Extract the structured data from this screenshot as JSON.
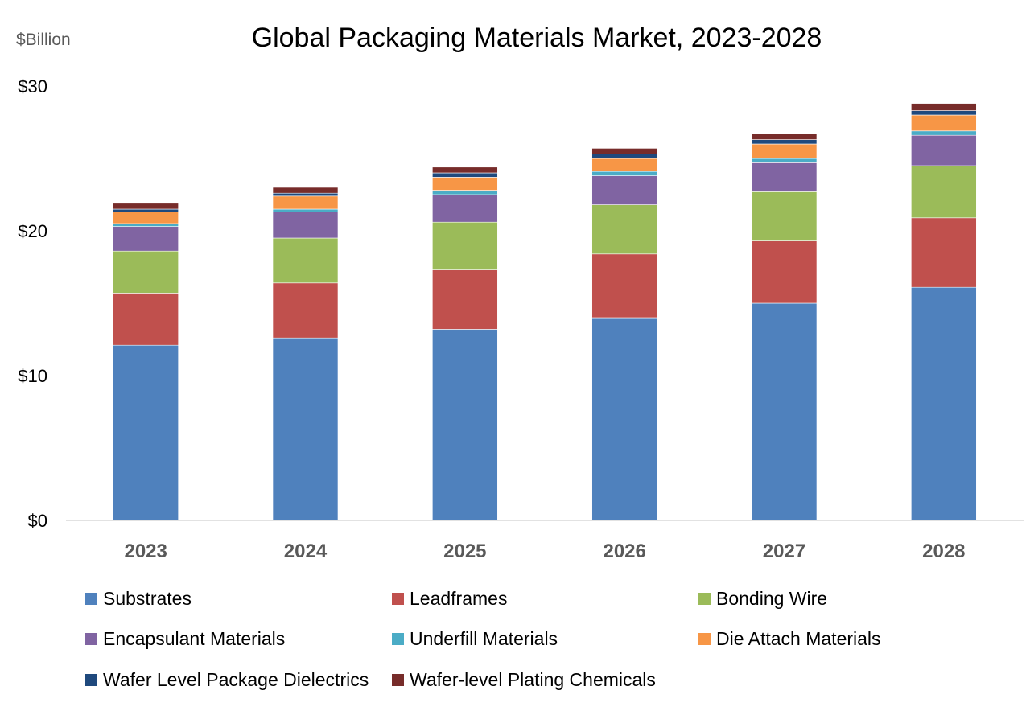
{
  "chart_data": {
    "type": "bar",
    "stacked": true,
    "title": "Global Packaging Materials Market, 2023-2028",
    "ylabel": "$Billion",
    "xlabel": "",
    "categories": [
      "2023",
      "2024",
      "2025",
      "2026",
      "2027",
      "2028"
    ],
    "ylim": [
      0,
      30
    ],
    "yticks": [
      0,
      10,
      20,
      30
    ],
    "ytick_labels": [
      "$0",
      "$10",
      "$20",
      "$30"
    ],
    "grid": false,
    "legend_position": "bottom",
    "series": [
      {
        "name": "Substrates",
        "color": "#4F81BD",
        "values": [
          12.1,
          12.6,
          13.2,
          14.0,
          15.0,
          16.1
        ]
      },
      {
        "name": "Leadframes",
        "color": "#C0504D",
        "values": [
          3.6,
          3.8,
          4.1,
          4.4,
          4.3,
          4.8
        ]
      },
      {
        "name": "Bonding Wire",
        "color": "#9BBB59",
        "values": [
          2.9,
          3.1,
          3.3,
          3.4,
          3.4,
          3.6
        ]
      },
      {
        "name": "Encapsulant Materials",
        "color": "#8064A2",
        "values": [
          1.7,
          1.8,
          1.9,
          2.0,
          2.0,
          2.1
        ]
      },
      {
        "name": "Underfill Materials",
        "color": "#4BACC6",
        "values": [
          0.2,
          0.2,
          0.3,
          0.3,
          0.3,
          0.3
        ]
      },
      {
        "name": "Die Attach Materials",
        "color": "#F79646",
        "values": [
          0.8,
          0.9,
          0.9,
          0.9,
          1.0,
          1.1
        ]
      },
      {
        "name": "Wafer Level Package Dielectrics",
        "color": "#1F497D",
        "values": [
          0.2,
          0.2,
          0.3,
          0.3,
          0.3,
          0.3
        ]
      },
      {
        "name": "Wafer-level Plating Chemicals",
        "color": "#772C2A",
        "values": [
          0.4,
          0.4,
          0.4,
          0.4,
          0.4,
          0.5
        ]
      }
    ]
  }
}
